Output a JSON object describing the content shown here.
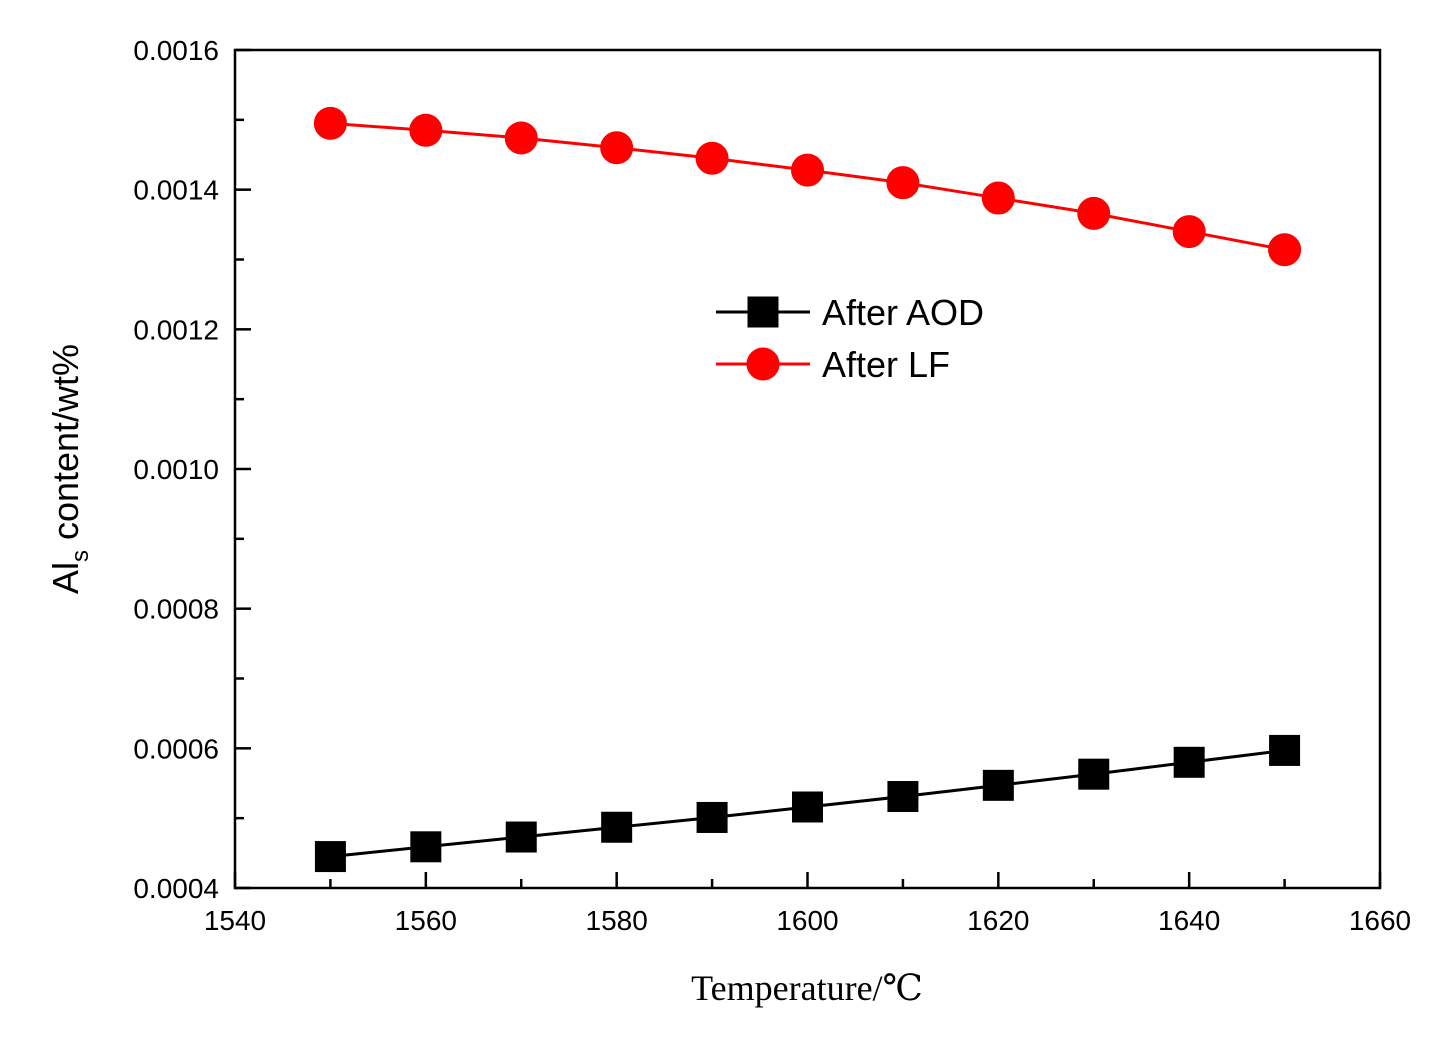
{
  "chart_data": {
    "type": "line",
    "title": "",
    "xlabel": "Temperature/℃",
    "ylabel_main": "Al",
    "ylabel_sub": "s",
    "ylabel_rest": " content/wt%",
    "xlim": [
      1540,
      1660
    ],
    "ylim": [
      0.0004,
      0.0016
    ],
    "xticks": [
      "1540",
      "1560",
      "1580",
      "1600",
      "1620",
      "1640",
      "1660"
    ],
    "yticks": [
      "0.0004",
      "0.0006",
      "0.0008",
      "0.0010",
      "0.0012",
      "0.0014",
      "0.0016"
    ],
    "x": [
      1550,
      1560,
      1570,
      1580,
      1590,
      1600,
      1610,
      1620,
      1630,
      1640,
      1650
    ],
    "series": [
      {
        "name": "After AOD",
        "marker": "square",
        "color": "#000000",
        "values": [
          0.000445,
          0.000459,
          0.000473,
          0.000487,
          0.000501,
          0.000516,
          0.000531,
          0.000547,
          0.000563,
          0.00058,
          0.000597
        ]
      },
      {
        "name": "After LF",
        "marker": "circle",
        "color": "#ff0000",
        "values": [
          0.001495,
          0.001485,
          0.001474,
          0.00146,
          0.001445,
          0.001428,
          0.00141,
          0.001388,
          0.001366,
          0.00134,
          0.001314
        ]
      }
    ],
    "legend_position": "upper-center"
  }
}
